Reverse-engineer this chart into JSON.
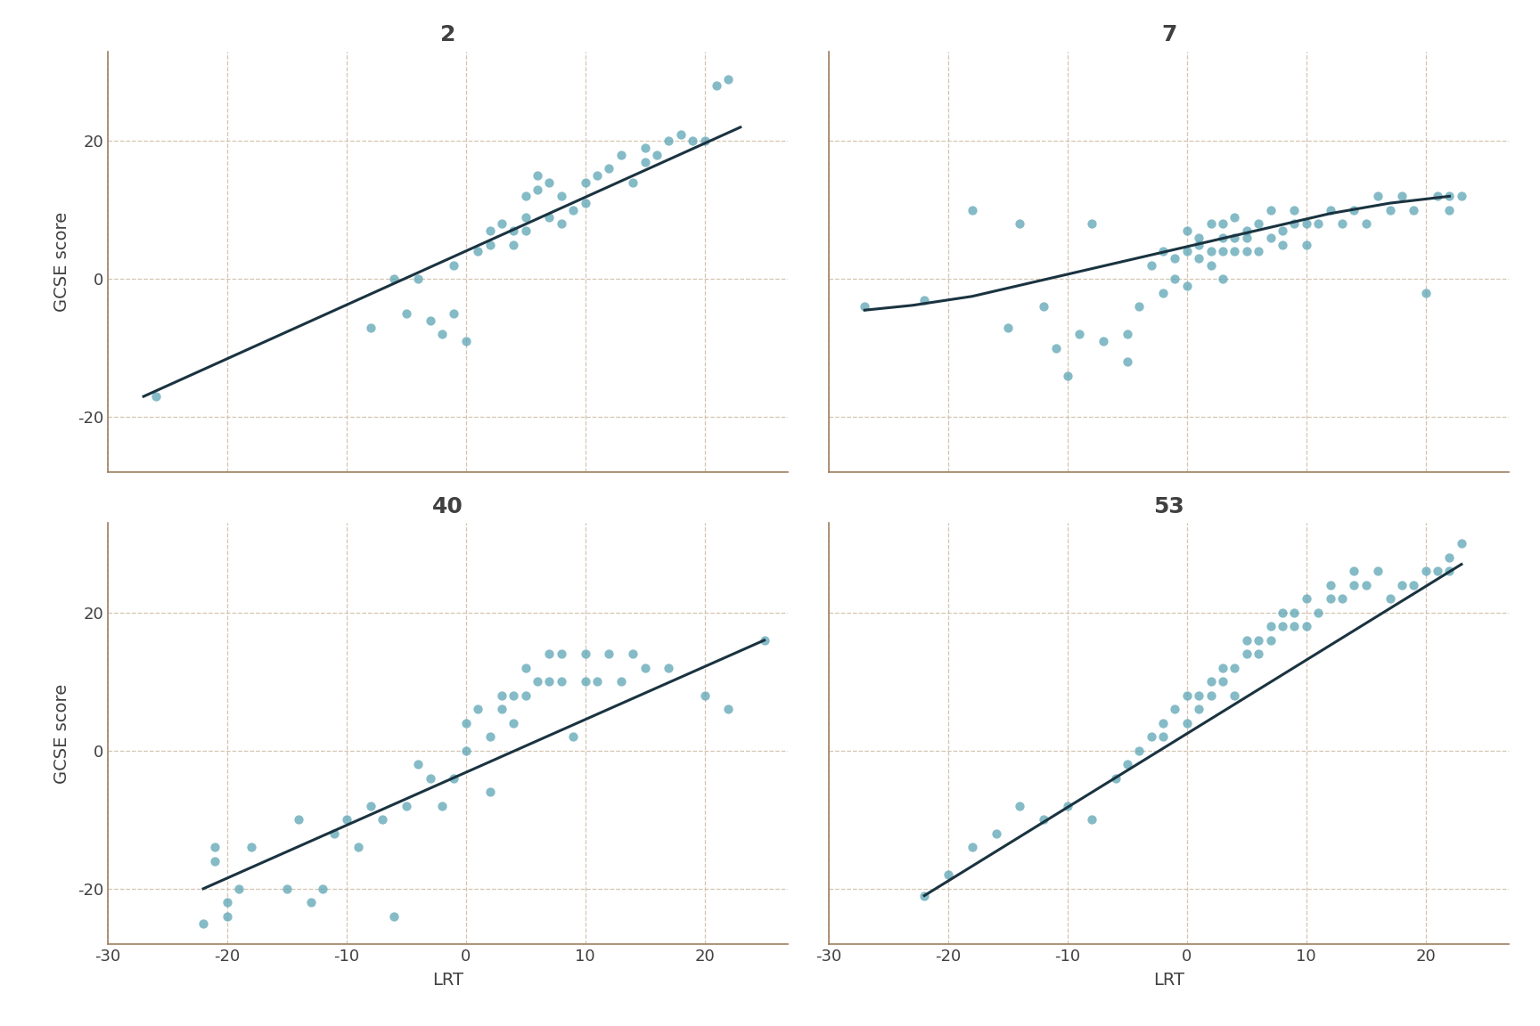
{
  "schools": [
    "2",
    "7",
    "40",
    "53"
  ],
  "point_color": "#5ba4b4",
  "line_color": "#1a3340",
  "background_color": "#ffffff",
  "grid_color": "#d4c5b0",
  "spine_color": "#a08060",
  "xlabel": "LRT",
  "ylabel": "GCSE score",
  "xlim": [
    -30,
    27
  ],
  "ylim": [
    -28,
    33
  ],
  "xticks": [
    -30,
    -20,
    -10,
    0,
    10,
    20
  ],
  "xticklabels": [
    "-30",
    "-20",
    "-10",
    "0",
    "10",
    "20"
  ],
  "yticks": [
    -20,
    0,
    20
  ],
  "school_2": {
    "lrt": [
      -26,
      -8,
      -6,
      -5,
      -4,
      -3,
      -2,
      -1,
      -1,
      0,
      1,
      2,
      2,
      3,
      4,
      4,
      5,
      5,
      5,
      6,
      6,
      7,
      7,
      8,
      8,
      9,
      10,
      10,
      11,
      12,
      13,
      14,
      15,
      15,
      16,
      17,
      18,
      19,
      20,
      21,
      22
    ],
    "gcse": [
      -17,
      -7,
      0,
      -5,
      0,
      -6,
      -8,
      -5,
      2,
      -9,
      4,
      7,
      5,
      8,
      7,
      5,
      9,
      7,
      12,
      13,
      15,
      9,
      14,
      8,
      12,
      10,
      11,
      14,
      15,
      16,
      18,
      14,
      19,
      17,
      18,
      20,
      21,
      20,
      20,
      28,
      29
    ],
    "fit_x": [
      -27,
      23
    ],
    "fit_y": [
      -17,
      22
    ],
    "curve": false
  },
  "school_7": {
    "lrt": [
      -27,
      -22,
      -18,
      -15,
      -14,
      -12,
      -11,
      -10,
      -9,
      -8,
      -7,
      -5,
      -5,
      -4,
      -3,
      -2,
      -2,
      -1,
      -1,
      0,
      0,
      0,
      1,
      1,
      1,
      2,
      2,
      2,
      3,
      3,
      3,
      3,
      4,
      4,
      4,
      5,
      5,
      5,
      6,
      6,
      7,
      7,
      8,
      8,
      9,
      9,
      10,
      10,
      11,
      12,
      13,
      14,
      15,
      16,
      17,
      18,
      19,
      20,
      21,
      22,
      22,
      23
    ],
    "gcse": [
      -4,
      -3,
      10,
      -7,
      8,
      -4,
      -10,
      -14,
      -8,
      8,
      -9,
      -8,
      -12,
      -4,
      2,
      4,
      -2,
      0,
      3,
      -1,
      4,
      7,
      3,
      6,
      5,
      2,
      4,
      8,
      0,
      4,
      6,
      8,
      4,
      6,
      9,
      4,
      7,
      6,
      4,
      8,
      6,
      10,
      5,
      7,
      8,
      10,
      5,
      8,
      8,
      10,
      8,
      10,
      8,
      12,
      10,
      12,
      10,
      -2,
      12,
      10,
      12,
      12
    ],
    "curve": true,
    "curve_x": [
      -27,
      -23,
      -18,
      -13,
      -8,
      -3,
      2,
      7,
      12,
      17,
      22
    ],
    "curve_y": [
      -4.5,
      -3.8,
      -2.5,
      -0.5,
      1.5,
      3.5,
      5.5,
      7.5,
      9.5,
      11,
      12
    ]
  },
  "school_40": {
    "lrt": [
      -22,
      -21,
      -21,
      -20,
      -20,
      -19,
      -18,
      -15,
      -14,
      -13,
      -12,
      -11,
      -10,
      -9,
      -8,
      -7,
      -6,
      -5,
      -4,
      -3,
      -2,
      -1,
      0,
      0,
      1,
      2,
      2,
      3,
      3,
      4,
      4,
      5,
      5,
      6,
      7,
      7,
      8,
      8,
      9,
      10,
      10,
      11,
      12,
      13,
      14,
      15,
      17,
      20,
      22,
      25
    ],
    "gcse": [
      -25,
      -16,
      -14,
      -24,
      -22,
      -20,
      -14,
      -20,
      -10,
      -22,
      -20,
      -12,
      -10,
      -14,
      -8,
      -10,
      -24,
      -8,
      -2,
      -4,
      -8,
      -4,
      4,
      0,
      6,
      2,
      -6,
      6,
      8,
      8,
      4,
      12,
      8,
      10,
      10,
      14,
      14,
      10,
      2,
      10,
      14,
      10,
      14,
      10,
      14,
      12,
      12,
      8,
      6,
      16
    ],
    "fit_x": [
      -22,
      25
    ],
    "fit_y": [
      -20,
      16
    ],
    "curve": false
  },
  "school_53": {
    "lrt": [
      -22,
      -20,
      -18,
      -16,
      -14,
      -12,
      -10,
      -8,
      -6,
      -5,
      -4,
      -3,
      -2,
      -2,
      -1,
      0,
      0,
      1,
      1,
      2,
      2,
      3,
      3,
      4,
      4,
      5,
      5,
      6,
      6,
      7,
      7,
      8,
      8,
      9,
      9,
      10,
      10,
      11,
      12,
      12,
      13,
      14,
      14,
      15,
      16,
      17,
      18,
      19,
      20,
      21,
      22,
      22,
      23
    ],
    "gcse": [
      -21,
      -18,
      -14,
      -12,
      -8,
      -10,
      -8,
      -10,
      -4,
      -2,
      0,
      2,
      4,
      2,
      6,
      4,
      8,
      6,
      8,
      8,
      10,
      10,
      12,
      8,
      12,
      14,
      16,
      14,
      16,
      18,
      16,
      18,
      20,
      18,
      20,
      18,
      22,
      20,
      22,
      24,
      22,
      24,
      26,
      24,
      26,
      22,
      24,
      24,
      26,
      26,
      28,
      26,
      30
    ],
    "fit_x": [
      -22,
      23
    ],
    "fit_y": [
      -21,
      27
    ],
    "curve": false
  },
  "title_fontsize": 18,
  "label_fontsize": 14,
  "tick_fontsize": 13,
  "point_size": 55,
  "point_alpha": 0.75,
  "line_width": 2.2
}
